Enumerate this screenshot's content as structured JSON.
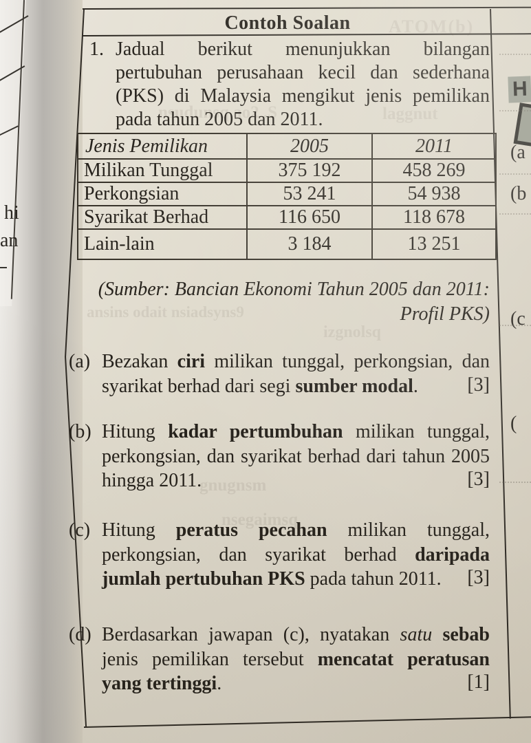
{
  "header": {
    "title": "Contoh Soalan"
  },
  "question": {
    "number": "1.",
    "intro": "Jadual berikut menunjukkan bilangan pertubuhan perusahaan kecil dan sederhana (PKS) di Malaysia mengikut jenis pemilikan pada tahun 2005 dan 2011."
  },
  "table": {
    "headers": [
      "Jenis Pemilikan",
      "2005",
      "2011"
    ],
    "rows": [
      [
        "Milikan Tunggal",
        "375 192",
        "458 269"
      ],
      [
        "Perkongsian",
        "53 241",
        "54 938"
      ],
      [
        "Syarikat Berhad",
        "116 650",
        "118 678"
      ],
      [
        "Lain-lain",
        "3 184",
        "13 251"
      ]
    ]
  },
  "source": {
    "line1": "(Sumber: Bancian Ekonomi Tahun 2005 dan 2011:",
    "line2": "Profil PKS)"
  },
  "parts": [
    {
      "label": "(a)",
      "marks": "[3]",
      "segments": [
        {
          "t": "Bezakan "
        },
        {
          "t": "ciri",
          "b": true
        },
        {
          "t": " milikan tunggal, perkongsian, dan syarikat berhad dari segi "
        },
        {
          "t": "sumber modal",
          "b": true
        },
        {
          "t": "."
        }
      ]
    },
    {
      "label": "(b)",
      "marks": "[3]",
      "segments": [
        {
          "t": "Hitung "
        },
        {
          "t": "kadar pertumbuhan",
          "b": true
        },
        {
          "t": " milikan tunggal, perkongsian, dan syarikat berhad dari tahun 2005 hingga 2011."
        }
      ]
    },
    {
      "label": "(c)",
      "marks": "[3]",
      "segments": [
        {
          "t": "Hitung "
        },
        {
          "t": "peratus pecahan",
          "b": true
        },
        {
          "t": " milikan tunggal, perkongsian, dan syarikat berhad "
        },
        {
          "t": "daripada jumlah pertubuhan PKS",
          "b": true
        },
        {
          "t": " pada tahun 2011."
        }
      ]
    },
    {
      "label": "(d)",
      "marks": "[1]",
      "segments": [
        {
          "t": "Berdasarkan jawapan (c), nyatakan "
        },
        {
          "t": "satu",
          "i": true
        },
        {
          "t": " "
        },
        {
          "t": "sebab",
          "b": true
        },
        {
          "t": " jenis pemilikan tersebut "
        },
        {
          "t": "mencatat peratusan yang tertinggi",
          "b": true
        },
        {
          "t": "."
        }
      ]
    }
  ],
  "margins": {
    "left_fragments": [
      "hi",
      "an"
    ],
    "right_highlight_letter": "H",
    "right_fragments": [
      "(a",
      "(b",
      "(c",
      "("
    ]
  },
  "artifacts": {
    "bleedthrough": [
      "ATOM(b)",
      "nsudunsq ao2 .S",
      "laggnut",
      "ansins odait nsiadsyns9",
      "izgnolsq",
      "gnugnsm",
      "nsegaimsq"
    ]
  },
  "colors": {
    "paper": "#ddd7c9",
    "ink": "#26221c",
    "gutter_shadow": "#b6b3ae",
    "highlight": "#9b9e92"
  }
}
